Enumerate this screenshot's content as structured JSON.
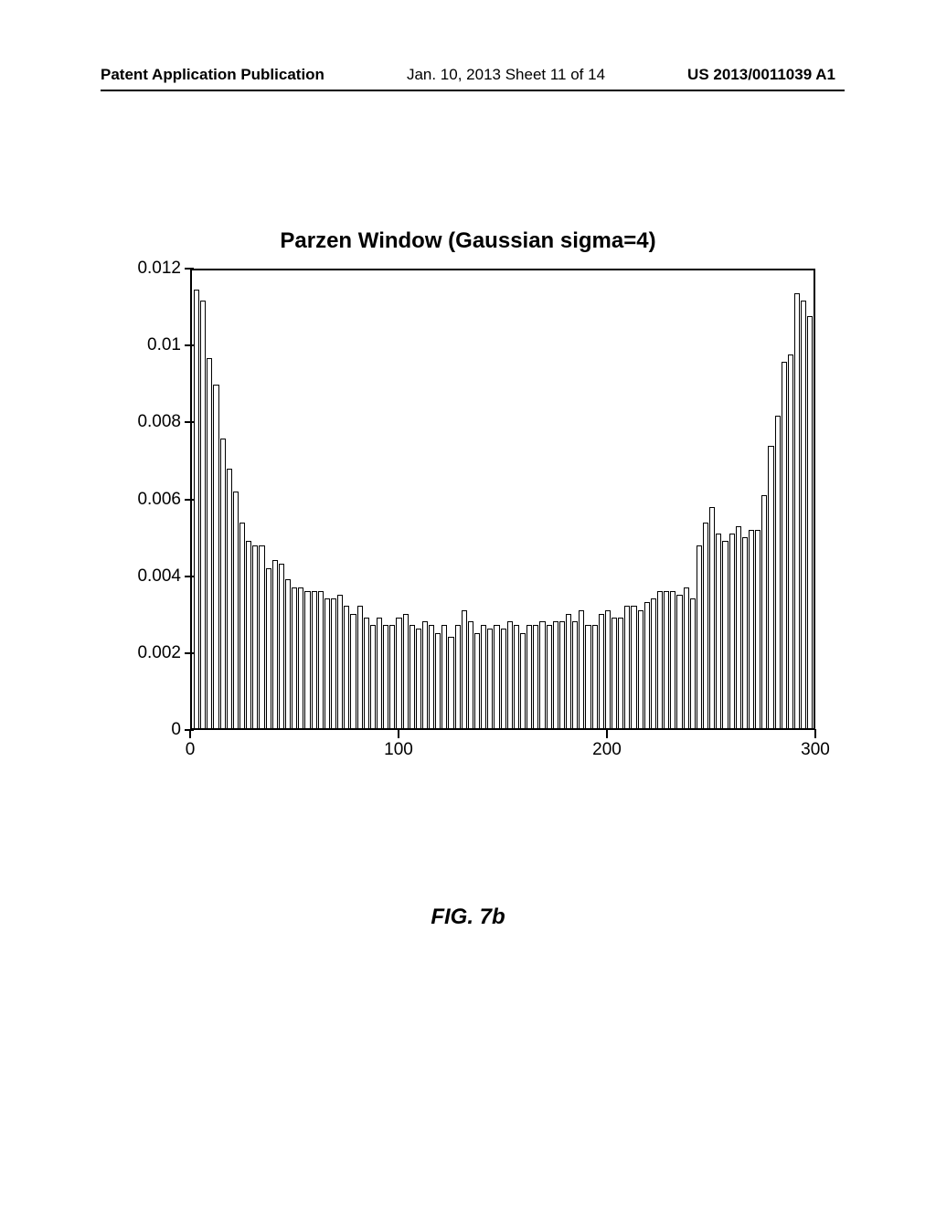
{
  "header": {
    "left": "Patent Application Publication",
    "center": "Jan. 10, 2013  Sheet 11 of 14",
    "right": "US 2013/0011039 A1"
  },
  "chart": {
    "type": "bar",
    "title": "Parzen Window (Gaussian sigma=4)",
    "xlim": [
      0,
      300
    ],
    "ylim": [
      0,
      0.012
    ],
    "x_ticks": [
      0,
      100,
      200,
      300
    ],
    "y_ticks": [
      0,
      0.002,
      0.004,
      0.006,
      0.008,
      0.01,
      0.012
    ],
    "x_labels": [
      "0",
      "100",
      "200",
      "300"
    ],
    "y_labels": [
      "0",
      "0.002",
      "0.004",
      "0.006",
      "0.008",
      "0.01",
      "0.012"
    ],
    "bar_fill": "#ffffff",
    "bar_stroke": "#000000",
    "background_color": "#ffffff",
    "border_color": "#000000",
    "values": [
      0.0115,
      0.0112,
      0.0097,
      0.009,
      0.0076,
      0.0068,
      0.0062,
      0.0054,
      0.0049,
      0.0048,
      0.0048,
      0.0042,
      0.0044,
      0.0043,
      0.0039,
      0.0037,
      0.0037,
      0.0036,
      0.0036,
      0.0036,
      0.0034,
      0.0034,
      0.0035,
      0.0032,
      0.003,
      0.0032,
      0.0029,
      0.0027,
      0.0029,
      0.0027,
      0.0027,
      0.0029,
      0.003,
      0.0027,
      0.0026,
      0.0028,
      0.0027,
      0.0025,
      0.0027,
      0.0024,
      0.0027,
      0.0031,
      0.0028,
      0.0025,
      0.0027,
      0.0026,
      0.0027,
      0.0026,
      0.0028,
      0.0027,
      0.0025,
      0.0027,
      0.0027,
      0.0028,
      0.0027,
      0.0028,
      0.0028,
      0.003,
      0.0028,
      0.0031,
      0.0027,
      0.0027,
      0.003,
      0.0031,
      0.0029,
      0.0029,
      0.0032,
      0.0032,
      0.0031,
      0.0033,
      0.0034,
      0.0036,
      0.0036,
      0.0036,
      0.0035,
      0.0037,
      0.0034,
      0.0048,
      0.0054,
      0.0058,
      0.0051,
      0.0049,
      0.0051,
      0.0053,
      0.005,
      0.0052,
      0.0052,
      0.0061,
      0.0074,
      0.0082,
      0.0096,
      0.0098,
      0.0114,
      0.0112,
      0.0108
    ]
  },
  "figure_caption": "FIG. 7b"
}
